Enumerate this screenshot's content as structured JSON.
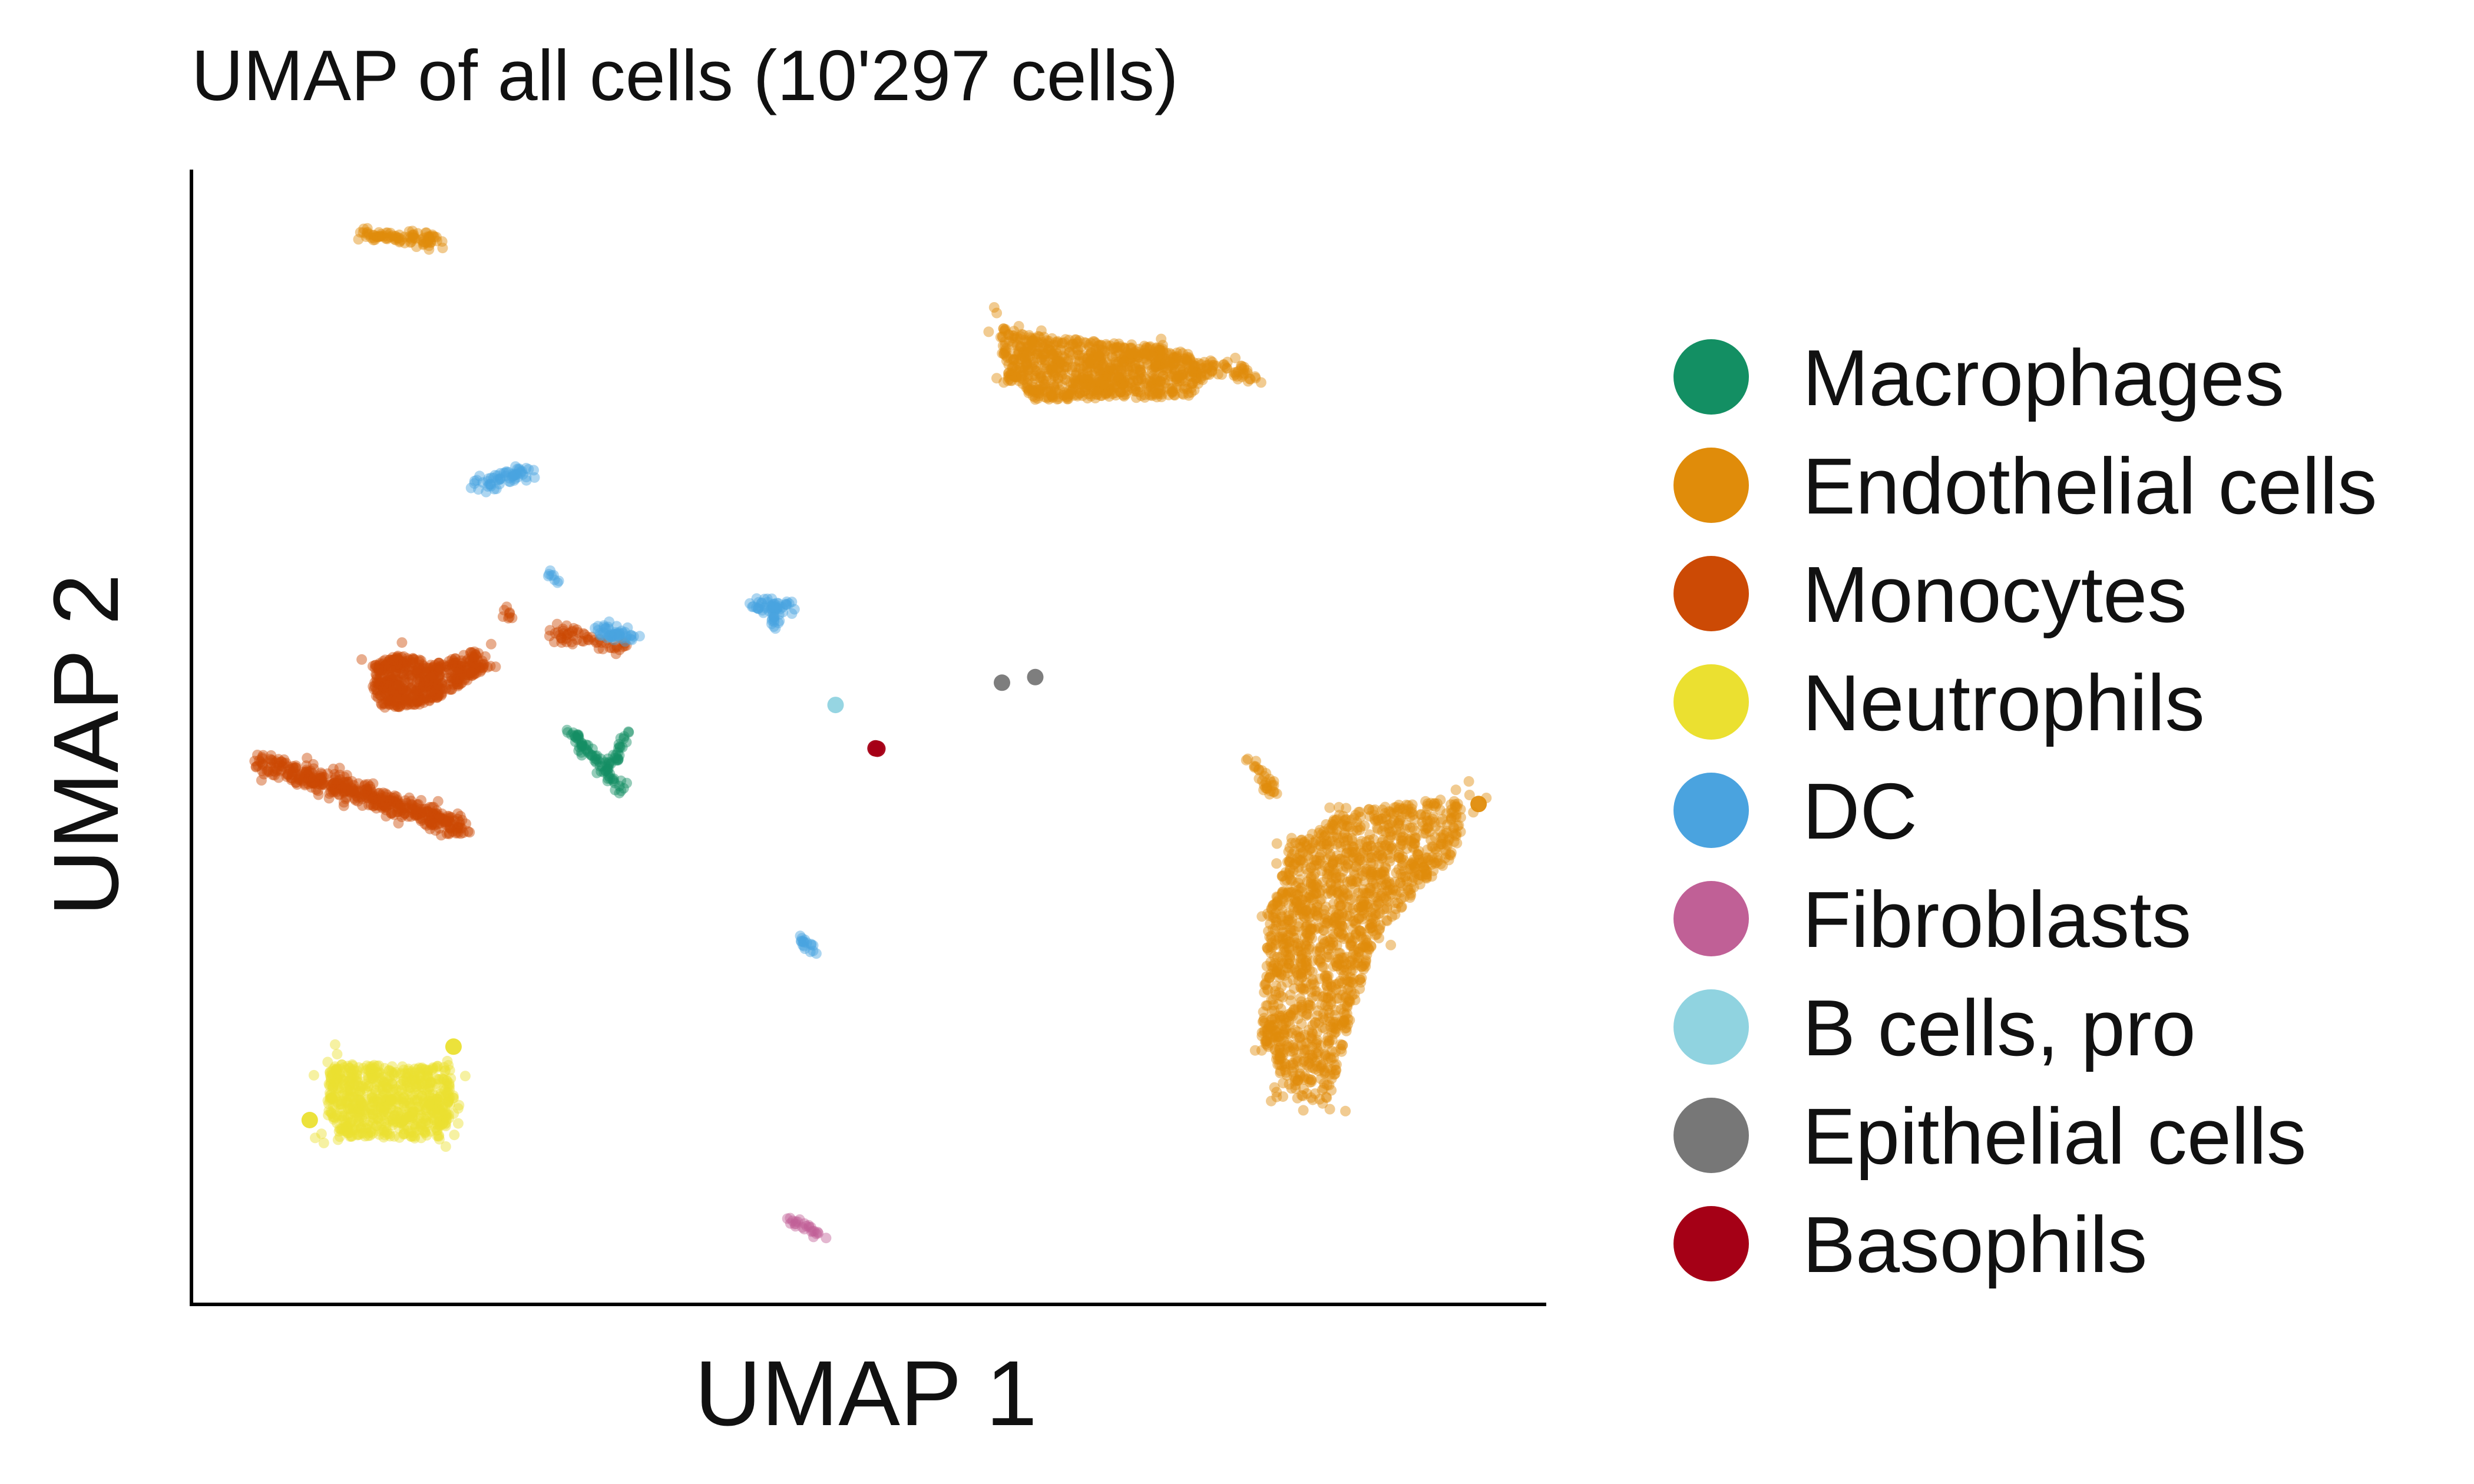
{
  "chart_data": {
    "type": "scatter",
    "title": "UMAP of all cells (10'297 cells)",
    "xlabel": "UMAP 1",
    "ylabel": "UMAP 2",
    "xlim": [
      0,
      100
    ],
    "ylim": [
      0,
      100
    ],
    "grid": false,
    "ticks": false,
    "legend_position": "right",
    "series": [
      {
        "name": "Macrophages",
        "color": "#138f63",
        "clusters": [
          {
            "shape": "line",
            "x1": 27.5,
            "y1": 50.5,
            "x2": 30.3,
            "y2": 46.8,
            "spread": 0.35,
            "n": 45
          },
          {
            "shape": "line",
            "x1": 30.3,
            "y1": 46.8,
            "x2": 32.0,
            "y2": 50.5,
            "spread": 0.35,
            "n": 30
          },
          {
            "shape": "line",
            "x1": 30.3,
            "y1": 46.8,
            "x2": 31.5,
            "y2": 45.0,
            "spread": 0.35,
            "n": 20
          }
        ]
      },
      {
        "name": "Endothelial cells",
        "color": "#e08c0a",
        "clusters": [
          {
            "shape": "line",
            "x1": 12.0,
            "y1": 95.2,
            "x2": 17.5,
            "y2": 94.5,
            "spread": 0.5,
            "n": 90
          },
          {
            "shape": "poly",
            "points": [
              [
                59.5,
                86.9
              ],
              [
                62,
                86
              ],
              [
                72,
                85
              ],
              [
                76.5,
                83.5
              ],
              [
                74,
                80.5
              ],
              [
                62.5,
                80.2
              ],
              [
                60.5,
                82
              ]
            ],
            "n": 900
          },
          {
            "shape": "line",
            "x1": 76.5,
            "y1": 83.4,
            "x2": 79.0,
            "y2": 82.0,
            "spread": 0.5,
            "n": 30
          },
          {
            "shape": "line",
            "x1": 78.5,
            "y1": 48.0,
            "x2": 80.5,
            "y2": 44.8,
            "spread": 0.4,
            "n": 30
          },
          {
            "shape": "poly",
            "points": [
              [
                86,
                43.3
              ],
              [
                94.5,
                44.6
              ],
              [
                94.5,
                40.0
              ],
              [
                88,
                32
              ],
              [
                84.5,
                17.3
              ],
              [
                81.5,
                17.5
              ],
              [
                79.5,
                23
              ],
              [
                80,
                34
              ],
              [
                81.5,
                40
              ]
            ],
            "n": 1500
          },
          {
            "shape": "point",
            "x": 95.8,
            "y": 43.9,
            "n": 1
          }
        ]
      },
      {
        "name": "Monocytes",
        "color": "#cc4a05",
        "clusters": [
          {
            "shape": "poly",
            "points": [
              [
                12.7,
                56.5
              ],
              [
                14.7,
                57.3
              ],
              [
                17.5,
                56.5
              ],
              [
                20.5,
                57.7
              ],
              [
                21.5,
                56.3
              ],
              [
                18.5,
                54
              ],
              [
                16.5,
                52.8
              ],
              [
                13.5,
                52.5
              ],
              [
                12.7,
                54.2
              ]
            ],
            "n": 500
          },
          {
            "shape": "line",
            "x1": 4.5,
            "y1": 47.7,
            "x2": 19.5,
            "y2": 41.7,
            "spread": 0.9,
            "n": 450
          },
          {
            "shape": "line",
            "x1": 26.5,
            "y1": 59.3,
            "x2": 31.5,
            "y2": 58.0,
            "spread": 0.6,
            "n": 60
          },
          {
            "shape": "line",
            "x1": 22.5,
            "y1": 61.7,
            "x2": 22.9,
            "y2": 60.5,
            "spread": 0.3,
            "n": 8
          }
        ]
      },
      {
        "name": "Neutrophils",
        "color": "#ebe030",
        "clusters": [
          {
            "shape": "poly",
            "points": [
              [
                9.5,
                20.5
              ],
              [
                18.5,
                20.5
              ],
              [
                19.0,
                16.5
              ],
              [
                18,
                13.8
              ],
              [
                10,
                14.0
              ],
              [
                9.3,
                16.5
              ]
            ],
            "n": 700
          },
          {
            "shape": "point",
            "x": 8.0,
            "y": 15.5,
            "n": 1
          },
          {
            "shape": "point",
            "x": 18.8,
            "y": 22.1,
            "n": 1
          }
        ]
      },
      {
        "name": "DC",
        "color": "#4aa3df",
        "clusters": [
          {
            "shape": "line",
            "x1": 20.5,
            "y1": 72.7,
            "x2": 24.5,
            "y2": 73.8,
            "spread": 0.6,
            "n": 60
          },
          {
            "shape": "line",
            "x1": 26.0,
            "y1": 64.8,
            "x2": 26.5,
            "y2": 63.7,
            "spread": 0.3,
            "n": 8
          },
          {
            "shape": "line",
            "x1": 29.8,
            "y1": 59.5,
            "x2": 32.5,
            "y2": 58.8,
            "spread": 0.6,
            "n": 50
          },
          {
            "shape": "line",
            "x1": 41.0,
            "y1": 61.7,
            "x2": 44.5,
            "y2": 61.7,
            "spread": 0.5,
            "n": 40
          },
          {
            "shape": "line",
            "x1": 42.8,
            "y1": 61.7,
            "x2": 43.0,
            "y2": 60.0,
            "spread": 0.4,
            "n": 25
          },
          {
            "shape": "line",
            "x1": 44.8,
            "y1": 32.0,
            "x2": 46.0,
            "y2": 30.5,
            "spread": 0.3,
            "n": 18
          }
        ]
      },
      {
        "name": "Fibroblasts",
        "color": "#c06096",
        "clusters": [
          {
            "shape": "line",
            "x1": 44.0,
            "y1": 6.7,
            "x2": 46.8,
            "y2": 4.8,
            "spread": 0.3,
            "n": 25
          }
        ]
      },
      {
        "name": "B cells, pro",
        "color": "#90d3e0",
        "clusters": [
          {
            "shape": "point",
            "x": 47.5,
            "y": 52.8,
            "n": 1
          }
        ]
      },
      {
        "name": "Epithelial cells",
        "color": "#777777",
        "clusters": [
          {
            "shape": "point",
            "x": 60.0,
            "y": 54.8,
            "n": 1
          },
          {
            "shape": "point",
            "x": 62.5,
            "y": 55.3,
            "n": 1
          }
        ]
      },
      {
        "name": "Basophils",
        "color": "#a50016",
        "clusters": [
          {
            "shape": "point",
            "x": 50.5,
            "y": 48.9,
            "n": 2
          }
        ]
      }
    ]
  }
}
